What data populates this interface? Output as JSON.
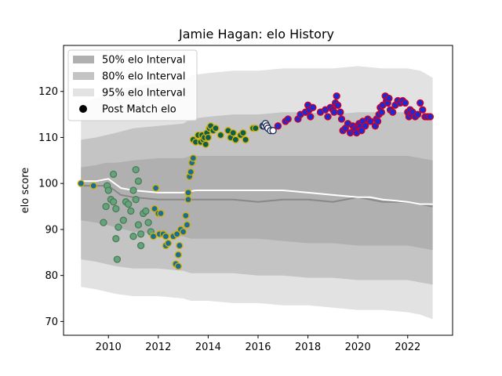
{
  "chart_data": {
    "type": "scatter",
    "title": "Jamie Hagan: elo History",
    "xlabel": "",
    "ylabel": "elo score",
    "xlim": [
      2008.2,
      2023.8
    ],
    "ylim": [
      67,
      130
    ],
    "xticks": [
      2010,
      2012,
      2014,
      2016,
      2018,
      2020,
      2022
    ],
    "yticks": [
      70,
      80,
      90,
      100,
      110,
      120
    ],
    "legend_position": "top-left",
    "legend": [
      {
        "label": "50% elo Interval",
        "kind": "band",
        "color": "#b0b0b0"
      },
      {
        "label": "80% elo Interval",
        "kind": "band",
        "color": "#c4c4c4"
      },
      {
        "label": "95% elo Interval",
        "kind": "band",
        "color": "#e2e2e2"
      },
      {
        "label": "Post Match elo",
        "kind": "marker",
        "color": "#000000"
      }
    ],
    "bands": {
      "x": [
        2008.9,
        2009.5,
        2009.9,
        2010.3,
        2011.0,
        2012.0,
        2013.0,
        2013.3,
        2014.0,
        2015.0,
        2016.0,
        2017.0,
        2018.0,
        2019.0,
        2020.0,
        2021.0,
        2022.0,
        2022.5,
        2023.0
      ],
      "i95": {
        "lower": [
          77.5,
          77.0,
          76.5,
          76.0,
          75.5,
          75.5,
          75.0,
          74.5,
          74.5,
          74.0,
          74.0,
          73.5,
          73.5,
          73.0,
          72.5,
          72.5,
          72.0,
          71.5,
          70.5
        ],
        "upper": [
          117.5,
          118.5,
          119.0,
          120.0,
          121.0,
          122.0,
          122.5,
          123.5,
          124.0,
          124.5,
          124.5,
          125.0,
          125.0,
          125.0,
          125.5,
          125.0,
          125.0,
          124.5,
          123.0
        ]
      },
      "i80": {
        "lower": [
          83.5,
          83.0,
          82.5,
          82.0,
          81.5,
          81.5,
          81.0,
          80.5,
          80.5,
          80.5,
          80.0,
          80.0,
          79.5,
          79.5,
          79.0,
          79.0,
          79.0,
          78.5,
          78.0
        ],
        "upper": [
          109.5,
          110.0,
          110.5,
          111.0,
          112.0,
          112.5,
          113.0,
          114.0,
          114.5,
          115.0,
          115.0,
          115.5,
          115.5,
          115.0,
          115.5,
          115.5,
          115.5,
          115.0,
          114.5
        ]
      },
      "i50": {
        "lower": [
          92.0,
          91.5,
          91.0,
          90.5,
          89.5,
          89.0,
          88.5,
          88.0,
          88.0,
          88.0,
          88.0,
          87.5,
          87.0,
          87.0,
          86.5,
          86.5,
          86.5,
          86.0,
          85.5
        ],
        "upper": [
          103.5,
          104.0,
          104.5,
          104.5,
          105.0,
          105.5,
          105.5,
          106.0,
          106.0,
          106.0,
          106.0,
          106.0,
          106.0,
          106.0,
          106.0,
          106.0,
          106.0,
          105.5,
          105.0
        ]
      }
    },
    "median_line": {
      "color": "#888888",
      "x": [
        2008.9,
        2009.5,
        2010.0,
        2010.5,
        2011.0,
        2012.0,
        2013.0,
        2013.5,
        2014.0,
        2015.0,
        2016.0,
        2017.0,
        2018.0,
        2019.0,
        2020.0,
        2020.5,
        2021.0,
        2022.0,
        2022.5,
        2023.0
      ],
      "y": [
        99.5,
        99.5,
        99.5,
        97.5,
        97.0,
        96.5,
        96.5,
        96.5,
        96.5,
        96.5,
        96.0,
        96.5,
        96.5,
        96.0,
        97.0,
        96.5,
        96.0,
        96.0,
        95.5,
        95.0
      ]
    },
    "mean_line": {
      "color": "#ffffff",
      "x": [
        2008.9,
        2009.5,
        2010.0,
        2010.5,
        2011.0,
        2012.0,
        2013.0,
        2013.5,
        2014.0,
        2015.0,
        2016.0,
        2017.0,
        2018.0,
        2019.0,
        2020.0,
        2020.5,
        2021.0,
        2022.0,
        2022.5,
        2023.0
      ],
      "y": [
        100.5,
        100.5,
        101.0,
        99.0,
        98.5,
        98.0,
        98.0,
        98.5,
        98.5,
        98.5,
        98.5,
        98.5,
        98.0,
        97.5,
        97.0,
        97.0,
        96.5,
        96.0,
        95.5,
        95.5
      ]
    },
    "series": [
      {
        "fill": "#66a37a",
        "edge": "#4a7c59",
        "x": [
          2009.8,
          2009.9,
          2009.95,
          2010.0,
          2010.1,
          2010.2,
          2010.2,
          2010.3,
          2010.3,
          2010.35,
          2010.4,
          2010.6,
          2010.7,
          2010.8,
          2010.9,
          2011.0,
          2011.0,
          2011.1,
          2011.1,
          2011.2,
          2011.2,
          2011.3,
          2011.3,
          2011.4,
          2011.5,
          2011.6,
          2011.7
        ],
        "y": [
          91.5,
          95.0,
          99.5,
          98.5,
          96.5,
          102.0,
          96.0,
          94.5,
          88.0,
          83.5,
          90.5,
          92.0,
          96.0,
          95.5,
          94.0,
          88.5,
          98.5,
          103.0,
          96.5,
          100.5,
          91.0,
          89.0,
          86.5,
          93.5,
          94.0,
          91.5,
          89.5
        ]
      },
      {
        "fill": "#1a6e96",
        "edge": "#d4b000",
        "x": [
          2008.9,
          2009.4,
          2011.8,
          2011.85,
          2011.9,
          2012.0,
          2012.05,
          2012.1,
          2012.2,
          2012.3,
          2012.3,
          2012.4,
          2012.6,
          2012.7,
          2012.75,
          2012.8,
          2012.8,
          2012.85,
          2012.9,
          2013.0,
          2013.1,
          2013.15,
          2013.2,
          2013.2,
          2013.25,
          2013.3,
          2013.35,
          2013.4
        ],
        "y": [
          100.0,
          99.5,
          88.5,
          94.5,
          99.0,
          93.5,
          89.0,
          93.5,
          89.0,
          88.5,
          86.5,
          87.0,
          88.5,
          82.5,
          89.0,
          82.0,
          84.5,
          86.5,
          90.0,
          89.5,
          93.0,
          91.0,
          96.5,
          98.0,
          101.5,
          102.5,
          104.5,
          105.5
        ]
      },
      {
        "fill": "#0b5e50",
        "edge": "#d4b000",
        "x": [
          2013.4,
          2013.5,
          2013.6,
          2013.7,
          2013.75,
          2013.8,
          2013.85,
          2013.9,
          2013.95,
          2014.0,
          2014.05,
          2014.1,
          2014.2,
          2014.3,
          2014.5,
          2014.8,
          2014.9,
          2015.0,
          2015.1,
          2015.3,
          2015.4,
          2015.5,
          2015.8,
          2015.9
        ],
        "y": [
          109.5,
          109.0,
          110.5,
          109.0,
          110.5,
          109.5,
          110.0,
          108.5,
          111.0,
          110.0,
          112.0,
          112.5,
          111.5,
          112.0,
          110.5,
          111.5,
          110.0,
          111.0,
          109.5,
          110.5,
          111.0,
          109.5,
          112.0,
          112.0
        ]
      },
      {
        "fill": "#ffffff",
        "edge": "#1a2a5a",
        "x": [
          2016.2,
          2016.25,
          2016.3,
          2016.35,
          2016.4,
          2016.5,
          2016.6
        ],
        "y": [
          112.5,
          112.5,
          113.0,
          112.5,
          112.0,
          111.5,
          111.5
        ]
      },
      {
        "fill": "#1a2ad4",
        "edge": "#d40020",
        "x": [
          2016.8,
          2017.1,
          2017.2,
          2017.6,
          2017.7,
          2017.9,
          2018.0,
          2018.05,
          2018.1,
          2018.2,
          2018.5,
          2018.7,
          2018.8,
          2018.9,
          2019.0,
          2019.05,
          2019.1,
          2019.15,
          2019.2,
          2019.3,
          2019.35,
          2019.4,
          2019.5,
          2019.6,
          2019.7,
          2019.8,
          2019.85,
          2019.9,
          2019.95,
          2020.0,
          2020.05,
          2020.1,
          2020.15,
          2020.2,
          2020.3,
          2020.4,
          2020.5,
          2020.7,
          2020.75,
          2020.8,
          2020.85,
          2020.9,
          2020.95,
          2021.0,
          2021.1,
          2021.15,
          2021.2,
          2021.25,
          2021.3,
          2021.4,
          2021.5,
          2021.6,
          2021.7,
          2021.8,
          2021.9,
          2022.0,
          2022.05,
          2022.1,
          2022.15,
          2022.2,
          2022.3,
          2022.4,
          2022.5,
          2022.6,
          2022.7,
          2022.8,
          2022.9
        ],
        "y": [
          112.5,
          113.5,
          114.0,
          114.0,
          115.0,
          115.5,
          117.0,
          116.0,
          114.5,
          116.5,
          115.5,
          116.0,
          114.5,
          116.5,
          116.0,
          115.5,
          117.5,
          119.0,
          117.0,
          115.5,
          114.0,
          111.5,
          112.0,
          113.0,
          111.0,
          112.5,
          111.5,
          112.0,
          111.0,
          112.5,
          113.0,
          112.5,
          111.5,
          113.5,
          112.5,
          114.0,
          113.5,
          112.5,
          114.0,
          113.5,
          115.0,
          116.5,
          115.5,
          117.0,
          119.0,
          118.0,
          117.5,
          118.5,
          116.0,
          115.5,
          117.0,
          118.0,
          117.5,
          118.0,
          117.5,
          115.5,
          114.5,
          116.0,
          115.0,
          115.5,
          114.5,
          115.0,
          117.5,
          116.0,
          114.5,
          114.5,
          114.5
        ]
      }
    ]
  }
}
